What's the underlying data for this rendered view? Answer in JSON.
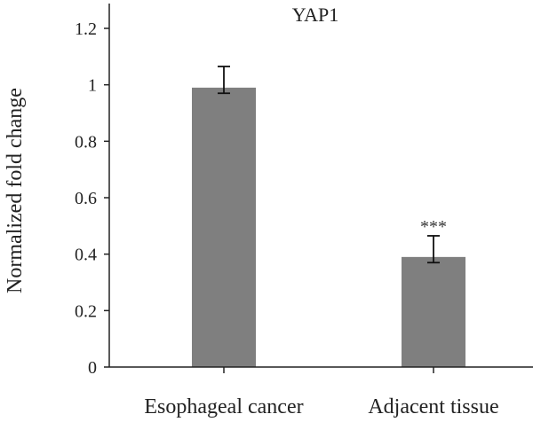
{
  "chart_data": {
    "type": "bar",
    "title": "YAP1",
    "xlabel": "",
    "ylabel": "Normalized fold change",
    "categories": [
      "Esophageal cancer",
      "Adjacent tissue"
    ],
    "values": [
      0.99,
      0.39
    ],
    "error_upper": [
      1.065,
      0.465
    ],
    "error_lower": [
      0.97,
      0.37
    ],
    "annotations": [
      "",
      "***"
    ],
    "ylim": [
      0,
      1.2
    ],
    "yticks": [
      0,
      0.2,
      0.4,
      0.6,
      0.8,
      1,
      1.2
    ],
    "ytick_labels": [
      "0",
      "0.2",
      "0.4",
      "0.6",
      "0.8",
      "1",
      "1.2"
    ],
    "grid": false,
    "bar_color": "#7f7f7f",
    "axis_color": "#222222"
  }
}
